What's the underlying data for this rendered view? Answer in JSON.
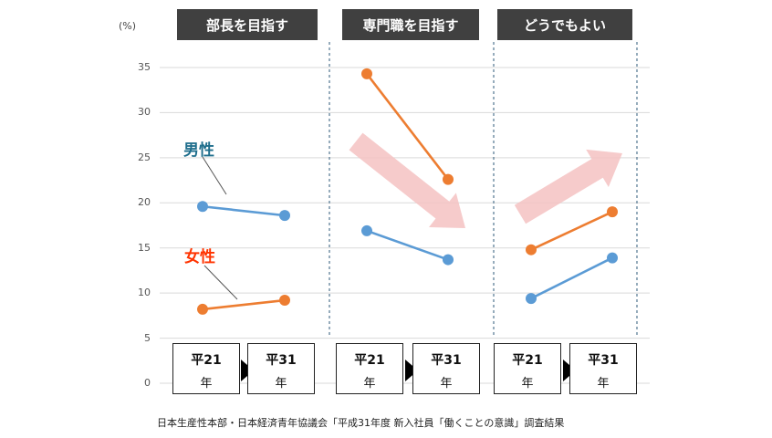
{
  "chart_data": {
    "type": "line",
    "unit_label": "(%)",
    "ylim": [
      0,
      35
    ],
    "y_ticks": [
      "0",
      "5",
      "10",
      "15",
      "20",
      "25",
      "30",
      "35"
    ],
    "grid": true,
    "colors": {
      "male": "#5b9bd5",
      "female": "#ed7d31",
      "arrow": "#f4c2c2",
      "header_bg": "#404040"
    },
    "groups": [
      {
        "title": "部長を目指す",
        "categories": [
          "平21年",
          "平31年"
        ],
        "series": [
          {
            "name": "男性",
            "values": [
              19.6,
              18.6
            ]
          },
          {
            "name": "女性",
            "values": [
              8.2,
              9.2
            ]
          }
        ]
      },
      {
        "title": "専門職を目指す",
        "categories": [
          "平21年",
          "平31年"
        ],
        "series": [
          {
            "values": [
              16.9,
              13.7
            ]
          },
          {
            "values": [
              34.3,
              22.6
            ]
          }
        ],
        "trend_arrow": "down"
      },
      {
        "title": "どうでもよい",
        "categories": [
          "平21年",
          "平31年"
        ],
        "series": [
          {
            "values": [
              9.4,
              13.9
            ]
          },
          {
            "values": [
              14.8,
              19.0
            ]
          }
        ],
        "trend_arrow": "up"
      }
    ],
    "x_labels": [
      {
        "era": "平21",
        "nen": "年"
      },
      {
        "era": "平31",
        "nen": "年"
      }
    ],
    "source": "日本生産性本部・日本経済青年協議会「平成31年度 新入社員「働くことの意識」調査結果"
  }
}
